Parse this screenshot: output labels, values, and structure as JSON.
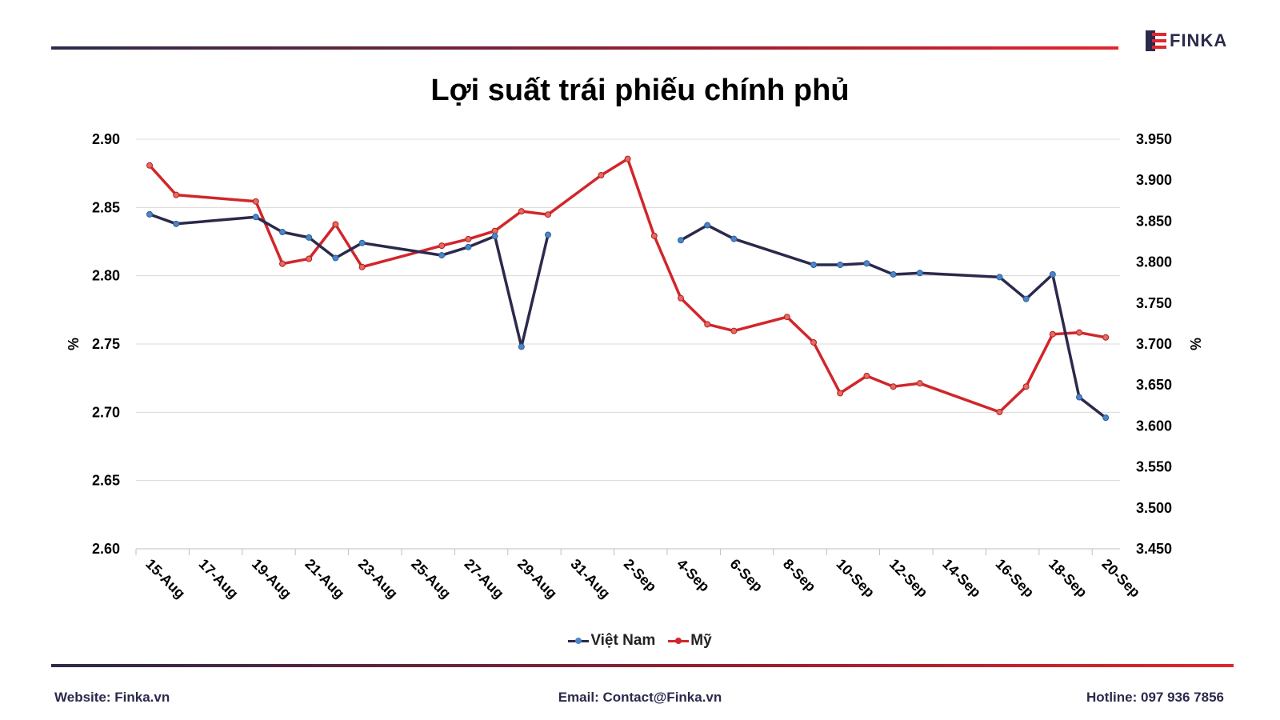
{
  "brand": {
    "logo_text": "FINKA"
  },
  "footer": {
    "website": "Website: Finka.vn",
    "email": "Email: Contact@Finka.vn",
    "hotline": "Hotline: 097 936 7856"
  },
  "colors": {
    "vn": "#2b2a4c",
    "us": "#d1262b",
    "marker": "#4a86c8"
  },
  "chart_data": {
    "type": "line",
    "title": "Lợi suất trái phiếu chính phủ",
    "ylabel_left": "%",
    "ylabel_right": "%",
    "ylim_left": [
      2.6,
      2.9
    ],
    "ylim_right": [
      3.45,
      3.95
    ],
    "yticks_left": [
      "2.60",
      "2.65",
      "2.70",
      "2.75",
      "2.80",
      "2.85",
      "2.90"
    ],
    "yticks_right": [
      "3.450",
      "3.500",
      "3.550",
      "3.600",
      "3.650",
      "3.700",
      "3.750",
      "3.800",
      "3.850",
      "3.900",
      "3.950"
    ],
    "x_tick_labels": [
      "15-Aug",
      "17-Aug",
      "19-Aug",
      "21-Aug",
      "23-Aug",
      "25-Aug",
      "27-Aug",
      "29-Aug",
      "31-Aug",
      "2-Sep",
      "4-Sep",
      "6-Sep",
      "8-Sep",
      "10-Sep",
      "12-Sep",
      "14-Sep",
      "16-Sep",
      "18-Sep",
      "20-Sep"
    ],
    "grid": true,
    "legend_position": "bottom",
    "series": [
      {
        "name": "Việt Nam",
        "axis": "left",
        "points": [
          [
            "15-Aug",
            2.845
          ],
          [
            "16-Aug",
            2.838
          ],
          [
            "19-Aug",
            2.843
          ],
          [
            "20-Aug",
            2.832
          ],
          [
            "21-Aug",
            2.828
          ],
          [
            "22-Aug",
            2.813
          ],
          [
            "23-Aug",
            2.824
          ],
          [
            "26-Aug",
            2.815
          ],
          [
            "27-Aug",
            2.821
          ],
          [
            "28-Aug",
            2.829
          ],
          [
            "29-Aug",
            2.748
          ],
          [
            "30-Aug",
            2.83
          ],
          [
            "4-Sep",
            2.826
          ],
          [
            "5-Sep",
            2.837
          ],
          [
            "6-Sep",
            2.827
          ],
          [
            "9-Sep",
            2.808
          ],
          [
            "10-Sep",
            2.808
          ],
          [
            "11-Sep",
            2.809
          ],
          [
            "12-Sep",
            2.801
          ],
          [
            "13-Sep",
            2.802
          ],
          [
            "16-Sep",
            2.799
          ],
          [
            "17-Sep",
            2.783
          ],
          [
            "18-Sep",
            2.801
          ],
          [
            "19-Sep",
            2.711
          ],
          [
            "20-Sep",
            2.696
          ]
        ]
      },
      {
        "name": "Mỹ",
        "axis": "right",
        "points": [
          [
            "15-Aug",
            3.918
          ],
          [
            "16-Aug",
            3.882
          ],
          [
            "19-Aug",
            3.874
          ],
          [
            "20-Aug",
            3.798
          ],
          [
            "21-Aug",
            3.804
          ],
          [
            "22-Aug",
            3.846
          ],
          [
            "23-Aug",
            3.794
          ],
          [
            "26-Aug",
            3.82
          ],
          [
            "27-Aug",
            3.828
          ],
          [
            "28-Aug",
            3.838
          ],
          [
            "29-Aug",
            3.862
          ],
          [
            "30-Aug",
            3.858
          ],
          [
            "1-Sep",
            3.906
          ],
          [
            "2-Sep",
            3.926
          ],
          [
            "3-Sep",
            3.832
          ],
          [
            "4-Sep",
            3.756
          ],
          [
            "5-Sep",
            3.724
          ],
          [
            "6-Sep",
            3.716
          ],
          [
            "8-Sep",
            3.733
          ],
          [
            "9-Sep",
            3.702
          ],
          [
            "10-Sep",
            3.64
          ],
          [
            "11-Sep",
            3.661
          ],
          [
            "12-Sep",
            3.648
          ],
          [
            "13-Sep",
            3.652
          ],
          [
            "16-Sep",
            3.617
          ],
          [
            "17-Sep",
            3.648
          ],
          [
            "18-Sep",
            3.712
          ],
          [
            "19-Sep",
            3.714
          ],
          [
            "20-Sep",
            3.708
          ]
        ]
      }
    ]
  }
}
